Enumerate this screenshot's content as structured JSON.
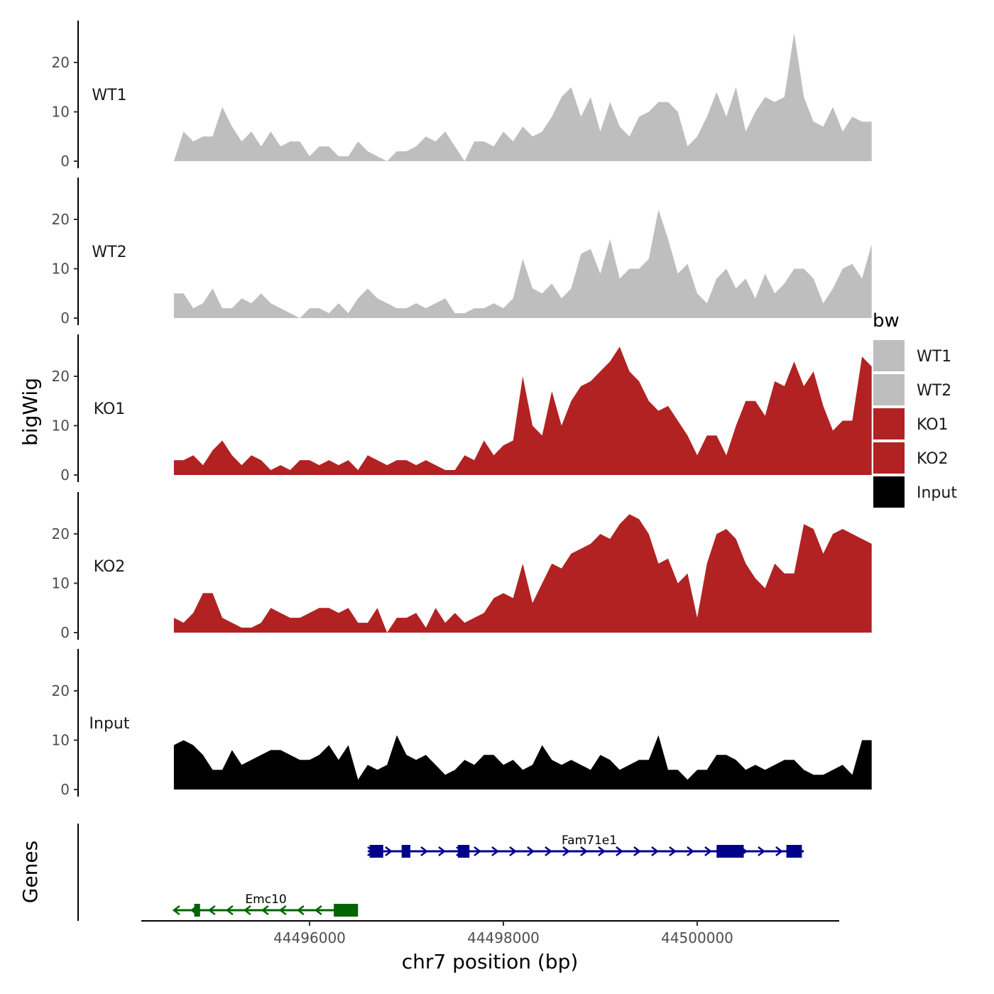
{
  "chart_data": {
    "type": "area",
    "subtype": "genome-browser-coverage-tracks",
    "x_axis": {
      "title": "chr7 position (bp)",
      "range": [
        44494200,
        44501400
      ],
      "ticks": [
        44496000,
        44498000,
        44500000
      ],
      "tick_labels": [
        "44496000",
        "44498000",
        "44500000"
      ]
    },
    "y_axis": {
      "title": "bigWig",
      "range": [
        0,
        28
      ],
      "ticks": [
        0,
        10,
        20
      ],
      "tick_labels": [
        "0",
        "10",
        "20"
      ]
    },
    "legend": {
      "title": "bw",
      "placement": "right",
      "entries": [
        {
          "label": "WT1",
          "color": "#bebebe"
        },
        {
          "label": "WT2",
          "color": "#bebebe"
        },
        {
          "label": "KO1",
          "color": "#b22222"
        },
        {
          "label": "KO2",
          "color": "#b22222"
        },
        {
          "label": "Input",
          "color": "#000000"
        }
      ]
    },
    "x_start": 44494600,
    "x_step": 100,
    "series": [
      {
        "name": "WT1",
        "color": "#bebebe",
        "values": [
          0,
          6,
          4,
          5,
          5,
          11,
          7,
          4,
          6,
          3,
          6,
          3,
          4,
          4,
          1,
          3,
          3,
          1,
          1,
          4,
          2,
          1,
          -1,
          2,
          2,
          3,
          5,
          4,
          6,
          3,
          0,
          4,
          4,
          3,
          6,
          4,
          7,
          5,
          6,
          9,
          13,
          15,
          9,
          13,
          6,
          12,
          7,
          5,
          9,
          10,
          12,
          12,
          10,
          3,
          5,
          9,
          14,
          9,
          15,
          6,
          10,
          13,
          12,
          13,
          26,
          13,
          8,
          7,
          11,
          6,
          9,
          8,
          8
        ]
      },
      {
        "name": "WT2",
        "color": "#bebebe",
        "values": [
          5,
          5,
          2,
          3,
          6,
          2,
          2,
          4,
          3,
          5,
          3,
          2,
          1,
          0,
          2,
          2,
          1,
          3,
          1,
          4,
          6,
          4,
          3,
          2,
          2,
          3,
          2,
          3,
          4,
          1,
          1,
          2,
          2,
          3,
          2,
          4,
          12,
          6,
          5,
          7,
          4,
          6,
          13,
          14,
          9,
          16,
          8,
          10,
          10,
          12,
          22,
          16,
          9,
          11,
          5,
          3,
          8,
          10,
          6,
          8,
          4,
          9,
          5,
          7,
          10,
          10,
          8,
          3,
          6,
          10,
          11,
          8,
          15
        ]
      },
      {
        "name": "KO1",
        "color": "#b22222",
        "values": [
          3,
          3,
          4,
          2,
          5,
          7,
          4,
          2,
          4,
          3,
          1,
          2,
          1,
          3,
          3,
          2,
          3,
          2,
          3,
          1,
          4,
          3,
          2,
          3,
          3,
          2,
          3,
          2,
          1,
          1,
          4,
          3,
          7,
          4,
          6,
          7,
          20,
          10,
          8,
          17,
          10,
          15,
          18,
          19,
          21,
          23,
          26,
          21,
          19,
          15,
          13,
          14,
          11,
          8,
          4,
          8,
          8,
          4,
          10,
          15,
          15,
          12,
          19,
          18,
          23,
          18,
          21,
          14,
          9,
          11,
          11,
          24,
          22
        ]
      },
      {
        "name": "KO2",
        "color": "#b22222",
        "values": [
          3,
          2,
          4,
          8,
          8,
          3,
          2,
          1,
          1,
          2,
          5,
          4,
          3,
          3,
          4,
          5,
          5,
          4,
          5,
          2,
          2,
          5,
          0,
          3,
          3,
          4,
          1,
          5,
          2,
          4,
          2,
          3,
          4,
          7,
          8,
          7,
          14,
          6,
          10,
          14,
          13,
          16,
          17,
          18,
          20,
          19,
          22,
          24,
          23,
          20,
          14,
          15,
          10,
          12,
          3,
          14,
          20,
          21,
          19,
          14,
          11,
          9,
          14,
          12,
          12,
          22,
          21,
          16,
          20,
          21,
          20,
          19,
          18
        ]
      },
      {
        "name": "Input",
        "color": "#000000",
        "values": [
          9,
          10,
          9,
          7,
          4,
          4,
          8,
          5,
          6,
          7,
          8,
          8,
          7,
          6,
          6,
          7,
          9,
          6,
          9,
          2,
          5,
          4,
          5,
          11,
          7,
          6,
          7,
          5,
          3,
          4,
          6,
          5,
          7,
          7,
          5,
          6,
          4,
          5,
          9,
          6,
          5,
          6,
          5,
          4,
          7,
          6,
          4,
          5,
          6,
          6,
          11,
          4,
          4,
          2,
          4,
          4,
          7,
          7,
          6,
          4,
          5,
          4,
          5,
          6,
          6,
          4,
          3,
          3,
          4,
          5,
          3,
          10,
          10
        ]
      }
    ],
    "track_labels": [
      "WT1",
      "WT2",
      "KO1",
      "KO2",
      "Input"
    ],
    "genes_panel": {
      "label": "Genes",
      "genes": [
        {
          "name": "Fam71e1",
          "strand": "+",
          "color": "#00008b",
          "start": 44496600,
          "end": 44501100,
          "exons": [
            [
              44496620,
              44496760
            ],
            [
              44496950,
              44497040
            ],
            [
              44497530,
              44497650
            ],
            [
              44500200,
              44500480
            ],
            [
              44500920,
              44501080
            ]
          ]
        },
        {
          "name": "Emc10",
          "strand": "-",
          "color": "#006400",
          "start": 44494600,
          "end": 44496500,
          "exons": [
            [
              44494810,
              44494870
            ],
            [
              44496250,
              44496500
            ]
          ]
        }
      ]
    }
  }
}
